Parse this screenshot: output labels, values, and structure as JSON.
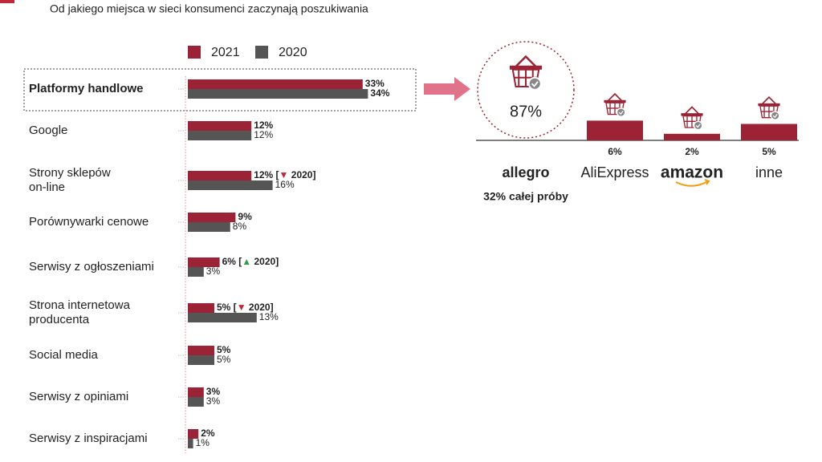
{
  "chart_data": [
    {
      "type": "hbar",
      "title": "Od jakiego miejsca w sieci konsumenci zaczynają poszukiwania",
      "categories": [
        "Platformy handlowe",
        "Google",
        "Strony sklepów\non-line",
        "Porównywarki cenowe",
        "Serwisy z ogłoszeniami",
        "Strona internetowa\nproducenta",
        "Social media",
        "Serwisy z opiniami",
        "Serwisy z inspiracjami"
      ],
      "highlight_index": 0,
      "up_color": "#3a9a4a",
      "down_color": "#c0283a",
      "series": [
        {
          "name": "2021",
          "color": "#9b2335",
          "values": [
            33,
            12,
            12,
            9,
            6,
            5,
            5,
            3,
            2
          ],
          "value_labels": [
            "33%",
            "12%",
            "12% [▼ 2020]",
            "9%",
            "6% [▲ 2020]",
            "5% [▼ 2020]",
            "5%",
            "3%",
            "2%"
          ]
        },
        {
          "name": "2020",
          "color": "#555555",
          "values": [
            34,
            12,
            16,
            8,
            3,
            13,
            5,
            3,
            1
          ],
          "value_labels": [
            "34%",
            "12%",
            "16%",
            "8%",
            "3%",
            "13%",
            "5%",
            "3%",
            "1%"
          ]
        }
      ]
    },
    {
      "type": "platform-bar",
      "categories": [
        "allegro",
        "AliExpress",
        "amazon",
        "inne"
      ],
      "colors": [
        "#e2541b",
        "#f08a24",
        "#111111",
        "#666666"
      ],
      "values": [
        87,
        6,
        2,
        5
      ],
      "value_labels": [
        "87%",
        "6%",
        "2%",
        "5%"
      ],
      "color": "#9b2335",
      "note": "32% całej próby"
    }
  ]
}
